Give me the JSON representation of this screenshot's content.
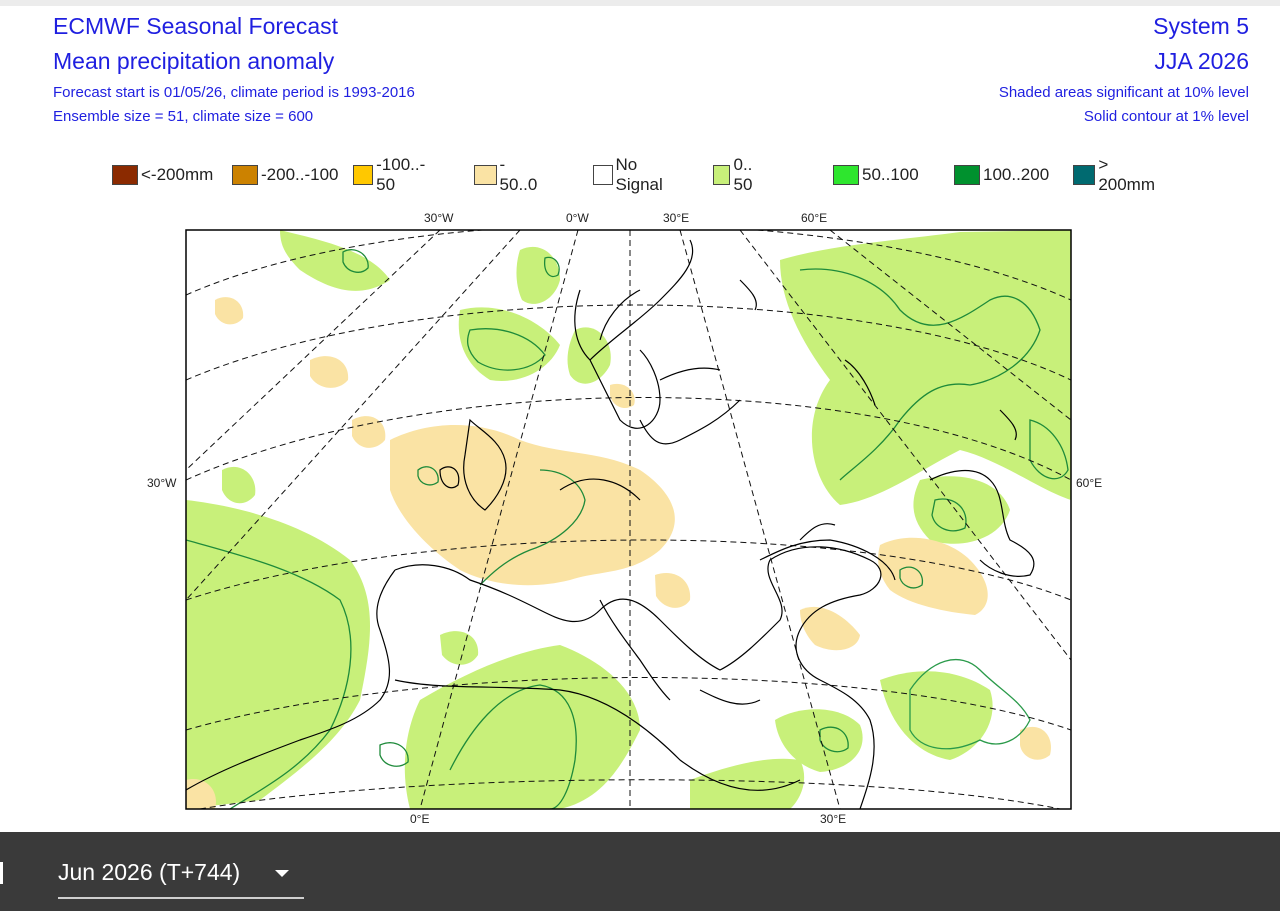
{
  "header": {
    "title": "ECMWF Seasonal Forecast",
    "subtitle": "Mean precipitation anomaly",
    "forecast_start": "Forecast start is 01/05/26, climate period is 1993-2016",
    "ensemble": "Ensemble size = 51, climate size = 600",
    "system": "System 5",
    "period": "JJA 2026",
    "shaded_note": "Shaded areas significant at 10% level",
    "contour_note": "Solid contour at 1% level"
  },
  "legend": [
    {
      "label": "<-200mm",
      "color": "#8b2a00"
    },
    {
      "label": "-200..-100",
      "color": "#cc8200"
    },
    {
      "label": "-100..- 50",
      "color": "#ffc800"
    },
    {
      "label": "- 50..0",
      "color": "#fae3a4"
    },
    {
      "label": "No Signal",
      "color": "#ffffff"
    },
    {
      "label": "0.. 50",
      "color": "#c8f07a"
    },
    {
      "label": "50..100",
      "color": "#2ee62e"
    },
    {
      "label": "100..200",
      "color": "#00912e"
    },
    {
      "label": "> 200mm",
      "color": "#006a70"
    }
  ],
  "map": {
    "top_labels": [
      "30°W",
      "0°W",
      "30°E",
      "60°E"
    ],
    "left_label": "30°W",
    "right_label": "60°E",
    "bottom_labels": [
      "0°E",
      "30°E"
    ],
    "colors": {
      "positive_fill": "#c8f07a",
      "negative_fill": "#fae3a4",
      "contour": "#1e8a3a",
      "coast": "#000000"
    }
  },
  "bottom_bar": {
    "selected_month": "Jun 2026 (T+744)"
  }
}
